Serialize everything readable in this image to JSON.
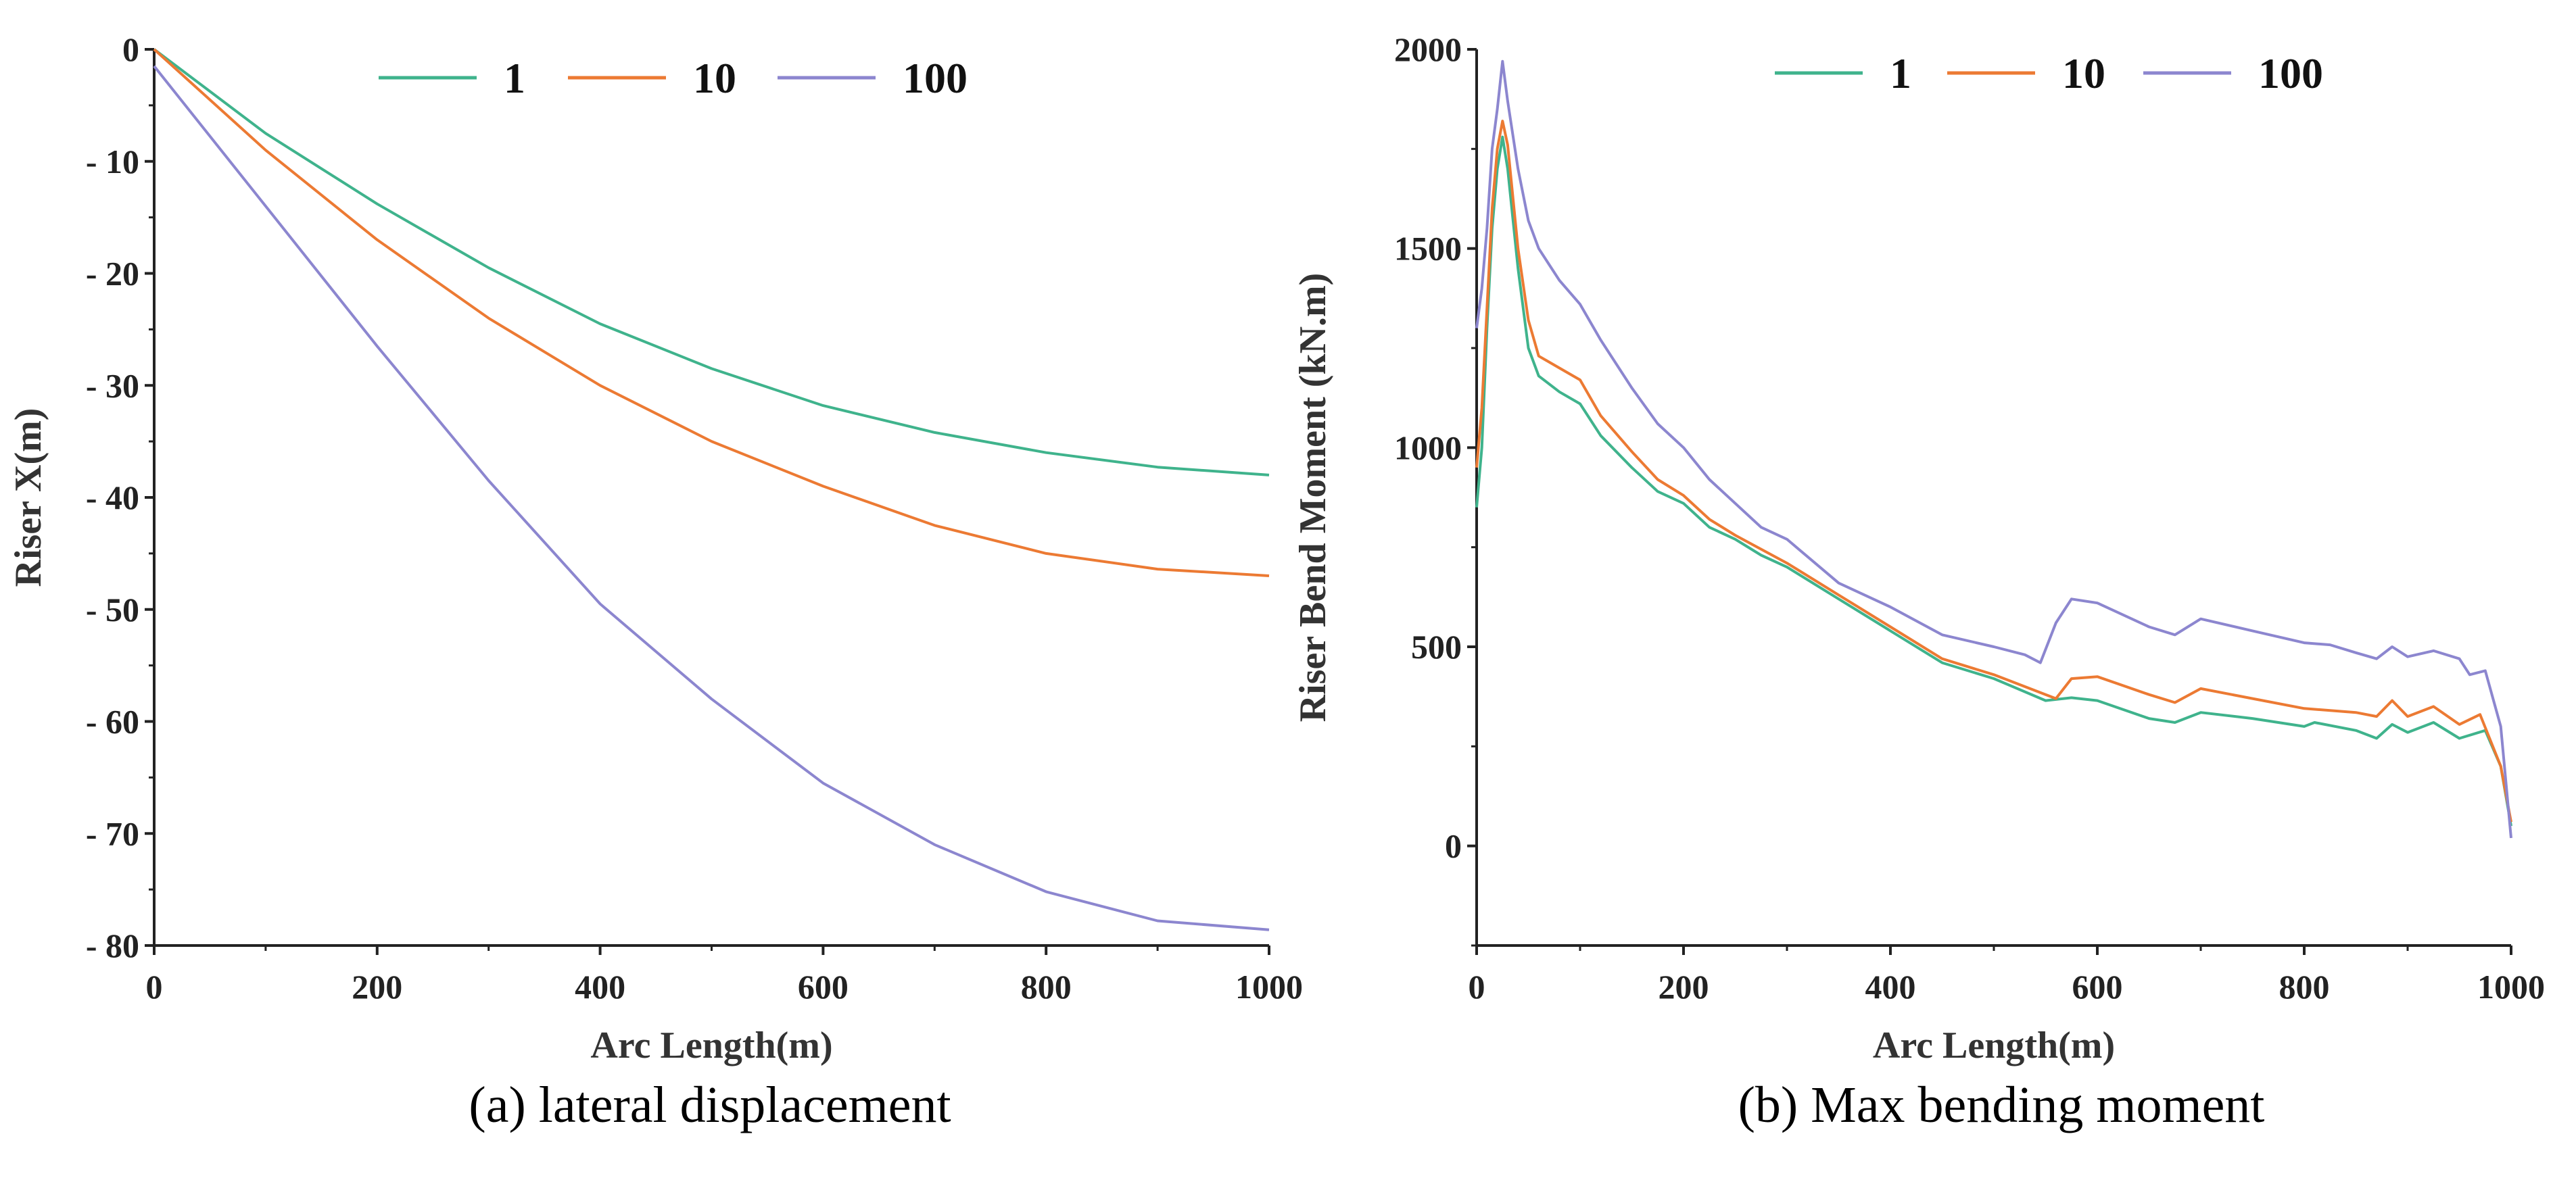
{
  "chart_data": [
    {
      "type": "line",
      "caption": "(a)   lateral displacement",
      "xlabel": "Arc Length(m)",
      "ylabel": "Riser X(m)",
      "xlim": [
        0,
        1000
      ],
      "ylim": [
        -80,
        0
      ],
      "xticks": [
        0,
        200,
        400,
        600,
        800,
        1000
      ],
      "yticks": [
        0,
        -10,
        -20,
        -30,
        -40,
        -50,
        -60,
        -70,
        -80
      ],
      "grid": false,
      "legend_position": "top-center",
      "x": [
        0,
        100,
        200,
        300,
        400,
        500,
        600,
        700,
        800,
        900,
        1000
      ],
      "series": [
        {
          "name": "1",
          "color": "#3fb38c",
          "values": [
            0,
            -7.5,
            -13.8,
            -19.5,
            -24.5,
            -28.5,
            -31.8,
            -34.2,
            -36,
            -37.3,
            -38
          ]
        },
        {
          "name": "10",
          "color": "#ec7a33",
          "values": [
            0,
            -9,
            -17,
            -24,
            -30,
            -35,
            -39,
            -42.5,
            -45,
            -46.4,
            -47
          ]
        },
        {
          "name": "100",
          "color": "#8c86cf",
          "values": [
            -1.5,
            -14,
            -26.5,
            -38.5,
            -49.5,
            -58,
            -65.5,
            -71,
            -75.2,
            -77.8,
            -78.6
          ]
        }
      ]
    },
    {
      "type": "line",
      "caption": "(b)  Max bending moment",
      "xlabel": "Arc Length(m)",
      "ylabel": "Riser Bend Moment (kN.m)",
      "xlim": [
        0,
        1000
      ],
      "ylim": [
        -250,
        2000
      ],
      "xticks": [
        0,
        200,
        400,
        600,
        800,
        1000
      ],
      "yticks": [
        0,
        500,
        1000,
        1500,
        2000
      ],
      "grid": false,
      "legend_position": "top-center",
      "series": [
        {
          "name": "1",
          "color": "#3fb38c",
          "points": [
            [
              0,
              850
            ],
            [
              5,
              1000
            ],
            [
              10,
              1300
            ],
            [
              15,
              1550
            ],
            [
              20,
              1700
            ],
            [
              25,
              1780
            ],
            [
              30,
              1700
            ],
            [
              40,
              1450
            ],
            [
              50,
              1250
            ],
            [
              60,
              1180
            ],
            [
              80,
              1140
            ],
            [
              100,
              1110
            ],
            [
              120,
              1030
            ],
            [
              150,
              950
            ],
            [
              175,
              890
            ],
            [
              200,
              860
            ],
            [
              225,
              800
            ],
            [
              250,
              770
            ],
            [
              275,
              730
            ],
            [
              300,
              700
            ],
            [
              350,
              620
            ],
            [
              400,
              540
            ],
            [
              450,
              460
            ],
            [
              500,
              420
            ],
            [
              550,
              365
            ],
            [
              575,
              372
            ],
            [
              600,
              365
            ],
            [
              650,
              320
            ],
            [
              675,
              310
            ],
            [
              700,
              335
            ],
            [
              750,
              320
            ],
            [
              800,
              300
            ],
            [
              810,
              310
            ],
            [
              850,
              290
            ],
            [
              870,
              270
            ],
            [
              885,
              305
            ],
            [
              900,
              285
            ],
            [
              925,
              310
            ],
            [
              950,
              270
            ],
            [
              975,
              290
            ],
            [
              990,
              200
            ],
            [
              1000,
              50
            ]
          ]
        },
        {
          "name": "10",
          "color": "#ec7a33",
          "points": [
            [
              0,
              950
            ],
            [
              5,
              1100
            ],
            [
              10,
              1350
            ],
            [
              15,
              1600
            ],
            [
              20,
              1750
            ],
            [
              25,
              1820
            ],
            [
              30,
              1760
            ],
            [
              40,
              1500
            ],
            [
              50,
              1320
            ],
            [
              60,
              1230
            ],
            [
              80,
              1200
            ],
            [
              100,
              1170
            ],
            [
              120,
              1080
            ],
            [
              150,
              990
            ],
            [
              175,
              920
            ],
            [
              200,
              880
            ],
            [
              225,
              820
            ],
            [
              250,
              780
            ],
            [
              300,
              710
            ],
            [
              350,
              630
            ],
            [
              400,
              550
            ],
            [
              450,
              470
            ],
            [
              500,
              430
            ],
            [
              550,
              380
            ],
            [
              560,
              370
            ],
            [
              575,
              420
            ],
            [
              600,
              425
            ],
            [
              650,
              380
            ],
            [
              675,
              360
            ],
            [
              700,
              395
            ],
            [
              750,
              370
            ],
            [
              800,
              345
            ],
            [
              850,
              335
            ],
            [
              870,
              325
            ],
            [
              885,
              365
            ],
            [
              900,
              325
            ],
            [
              925,
              350
            ],
            [
              950,
              305
            ],
            [
              970,
              330
            ],
            [
              990,
              200
            ],
            [
              1000,
              60
            ]
          ]
        },
        {
          "name": "100",
          "color": "#8c86cf",
          "points": [
            [
              0,
              1300
            ],
            [
              5,
              1400
            ],
            [
              10,
              1550
            ],
            [
              15,
              1750
            ],
            [
              20,
              1850
            ],
            [
              25,
              1970
            ],
            [
              30,
              1870
            ],
            [
              40,
              1700
            ],
            [
              50,
              1570
            ],
            [
              60,
              1500
            ],
            [
              80,
              1420
            ],
            [
              100,
              1360
            ],
            [
              120,
              1270
            ],
            [
              150,
              1150
            ],
            [
              175,
              1060
            ],
            [
              200,
              1000
            ],
            [
              225,
              920
            ],
            [
              250,
              860
            ],
            [
              275,
              800
            ],
            [
              300,
              770
            ],
            [
              350,
              660
            ],
            [
              400,
              600
            ],
            [
              450,
              530
            ],
            [
              500,
              500
            ],
            [
              530,
              480
            ],
            [
              545,
              460
            ],
            [
              560,
              560
            ],
            [
              575,
              620
            ],
            [
              600,
              610
            ],
            [
              650,
              550
            ],
            [
              675,
              530
            ],
            [
              700,
              570
            ],
            [
              750,
              540
            ],
            [
              800,
              510
            ],
            [
              825,
              505
            ],
            [
              850,
              485
            ],
            [
              870,
              470
            ],
            [
              885,
              500
            ],
            [
              900,
              475
            ],
            [
              925,
              490
            ],
            [
              950,
              470
            ],
            [
              960,
              430
            ],
            [
              975,
              440
            ],
            [
              990,
              300
            ],
            [
              1000,
              20
            ]
          ]
        }
      ]
    }
  ]
}
